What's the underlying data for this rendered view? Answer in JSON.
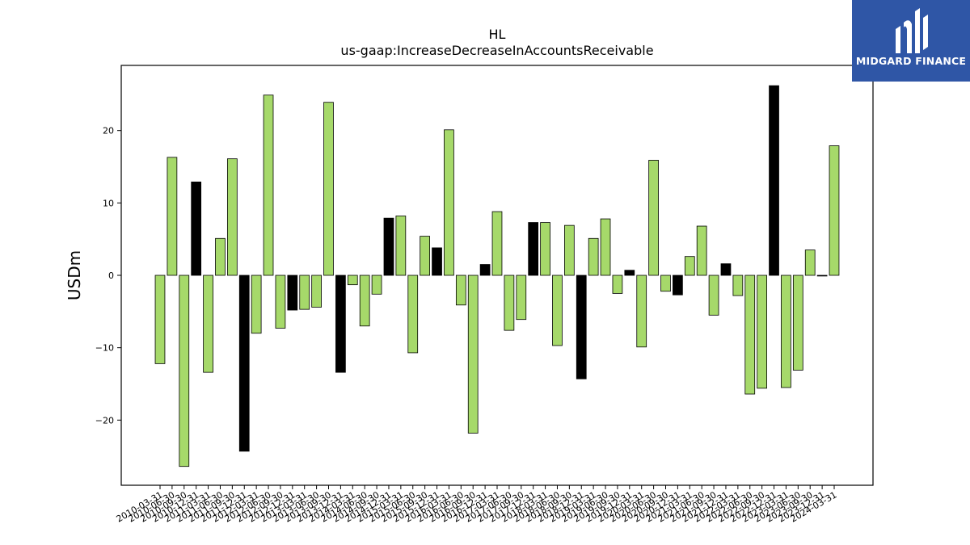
{
  "chart_data": {
    "type": "bar",
    "title": "HL",
    "subtitle": "us-gaap:IncreaseDecreaseInAccountsReceivable",
    "xlabel": "",
    "ylabel": "USDm",
    "ylim": [
      -29,
      29
    ],
    "yticks": [
      -20,
      -10,
      0,
      10,
      20
    ],
    "ytick_labels": [
      "−20",
      "−10",
      "0",
      "10",
      "20"
    ],
    "grid": false,
    "colors": {
      "default": "#a6d96a",
      "highlight": "#000000",
      "edge": "#000000"
    },
    "categories": [
      "2010-03-31",
      "2010-06-30",
      "2010-09-30",
      "2010-12-31",
      "2011-03-31",
      "2011-06-30",
      "2011-09-30",
      "2011-12-31",
      "2012-03-31",
      "2012-06-30",
      "2012-09-30",
      "2012-12-31",
      "2013-03-31",
      "2013-06-30",
      "2013-09-30",
      "2013-12-31",
      "2014-03-31",
      "2014-06-30",
      "2014-09-30",
      "2014-12-31",
      "2015-03-31",
      "2015-06-30",
      "2015-09-30",
      "2015-12-31",
      "2016-03-31",
      "2016-06-30",
      "2016-09-30",
      "2016-12-31",
      "2017-03-31",
      "2017-06-30",
      "2017-09-30",
      "2017-12-31",
      "2018-03-31",
      "2018-06-30",
      "2018-09-30",
      "2018-12-31",
      "2019-03-31",
      "2019-06-30",
      "2019-09-30",
      "2019-12-31",
      "2020-03-31",
      "2020-06-30",
      "2020-09-30",
      "2020-12-31",
      "2021-03-31",
      "2021-06-30",
      "2021-09-30",
      "2021-12-31",
      "2022-03-31",
      "2022-06-30",
      "2022-09-30",
      "2022-12-31",
      "2023-03-31",
      "2023-06-30",
      "2023-09-30",
      "2023-12-31",
      "2024-03-31"
    ],
    "values": [
      -12.2,
      16.3,
      -26.4,
      12.9,
      -13.4,
      5.1,
      16.1,
      -24.3,
      -8.0,
      24.9,
      -7.3,
      -4.8,
      -4.7,
      -4.4,
      23.9,
      -13.4,
      -1.3,
      -7.0,
      -2.6,
      7.9,
      8.2,
      -10.7,
      5.4,
      3.8,
      20.1,
      -4.1,
      -21.8,
      1.5,
      8.8,
      -7.6,
      -6.1,
      7.3,
      7.3,
      -9.7,
      6.9,
      -14.3,
      5.1,
      7.8,
      -2.5,
      0.7,
      -9.9,
      15.9,
      -2.2,
      -2.7,
      2.6,
      6.8,
      -5.5,
      1.6,
      -2.8,
      -16.4,
      -15.6,
      26.2,
      -15.5,
      -13.1,
      3.5,
      -0.1,
      17.9
    ],
    "highlight": [
      false,
      false,
      false,
      true,
      false,
      false,
      false,
      true,
      false,
      false,
      false,
      true,
      false,
      false,
      false,
      true,
      false,
      false,
      false,
      true,
      false,
      false,
      false,
      true,
      false,
      false,
      false,
      true,
      false,
      false,
      false,
      true,
      false,
      false,
      false,
      true,
      false,
      false,
      false,
      true,
      false,
      false,
      false,
      true,
      false,
      false,
      false,
      true,
      false,
      false,
      false,
      true,
      false,
      false,
      false,
      true,
      false
    ]
  },
  "logo": {
    "text": "MIDGARD FINANCE",
    "color": "#2f56a6"
  }
}
